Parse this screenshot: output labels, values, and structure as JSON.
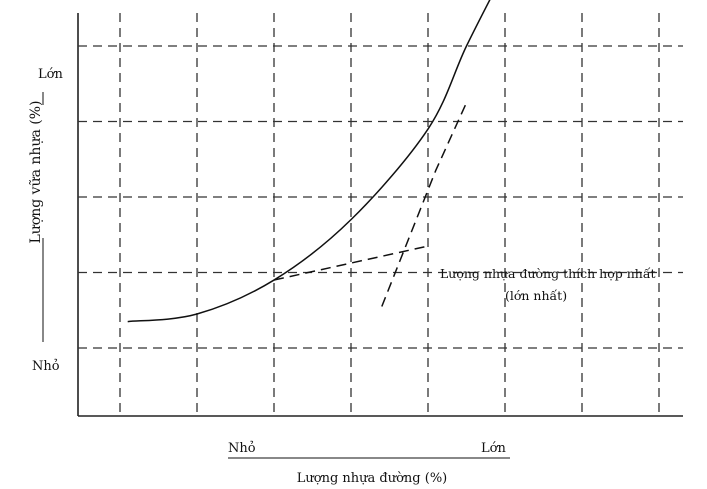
{
  "chart_data": {
    "type": "line",
    "xlabel": "Lượng nhựa đường (%)",
    "ylabel": "Lượng vữa nhựa (%)",
    "x_tick_labels": {
      "low": "Nhỏ",
      "high": "Lớn"
    },
    "y_tick_labels": {
      "low": "Nhỏ",
      "high": "Lớn"
    },
    "xlim": [
      0,
      8
    ],
    "ylim": [
      0,
      5
    ],
    "grid": true,
    "series": [
      {
        "style": "solid",
        "points": [
          [
            0.1,
            0.35
          ],
          [
            1,
            0.45
          ],
          [
            2,
            0.9
          ],
          [
            3,
            1.7
          ],
          [
            4,
            2.9
          ],
          [
            4.5,
            4.0
          ],
          [
            5,
            5.0
          ]
        ]
      },
      {
        "style": "dashed",
        "points": [
          [
            2,
            0.9
          ],
          [
            4,
            1.35
          ]
        ]
      },
      {
        "style": "dashed",
        "points": [
          [
            3.4,
            0.55
          ],
          [
            4.1,
            2.35
          ],
          [
            4.5,
            3.25
          ]
        ]
      }
    ],
    "annotation": {
      "line1": "Lượng nhựa đường thích hợp nhất",
      "line2": "(lớn nhất)"
    }
  }
}
